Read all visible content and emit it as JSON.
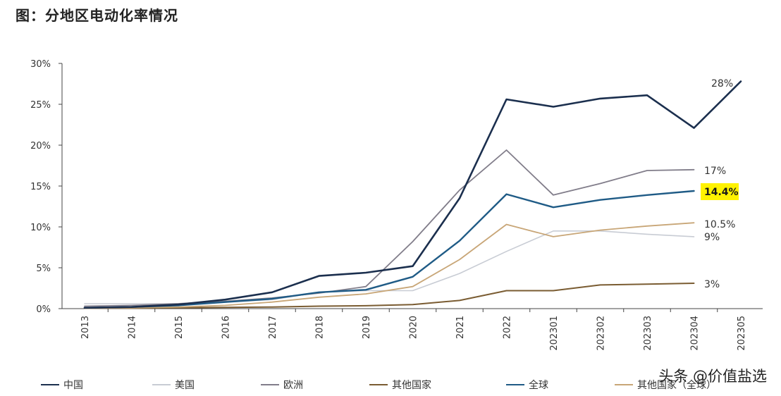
{
  "title": "图：分地区电动化率情况",
  "watermark": "头条 @价值盐选",
  "chart_data": {
    "type": "line",
    "categories": [
      "2013",
      "2014",
      "2015",
      "2016",
      "2017",
      "2018",
      "2019",
      "2020",
      "2021",
      "2022",
      "202301",
      "202302",
      "202303",
      "202304",
      "202305"
    ],
    "ylim": [
      0,
      30
    ],
    "yticks": [
      "0%",
      "5%",
      "10%",
      "15%",
      "20%",
      "25%",
      "30%"
    ],
    "series": [
      {
        "name": "中国",
        "color": "#1b2f4e",
        "width": 2.6,
        "values": [
          0.1,
          0.2,
          0.5,
          1.1,
          2.0,
          4.0,
          4.4,
          5.2,
          13.5,
          25.6,
          24.7,
          25.7,
          26.1,
          22.1,
          27.8
        ],
        "end_label": "28%"
      },
      {
        "name": "美国",
        "color": "#c8ccd4",
        "width": 1.6,
        "values": [
          0.6,
          0.6,
          0.6,
          0.8,
          1.1,
          2.0,
          2.2,
          2.2,
          4.3,
          7.0,
          9.5,
          9.5,
          9.1,
          8.8,
          null
        ],
        "end_label": "9%"
      },
      {
        "name": "欧洲",
        "color": "#817d8a",
        "width": 1.8,
        "values": [
          0.3,
          0.4,
          0.6,
          0.9,
          1.3,
          1.9,
          2.7,
          8.2,
          14.5,
          19.4,
          13.9,
          15.3,
          16.9,
          17.0,
          null
        ],
        "end_label": "17%"
      },
      {
        "name": "其他国家",
        "color": "#7a5c32",
        "width": 2.0,
        "values": [
          0.05,
          0.05,
          0.1,
          0.15,
          0.2,
          0.3,
          0.35,
          0.5,
          1.0,
          2.2,
          2.2,
          2.9,
          3.0,
          3.1,
          null
        ],
        "end_label": "3%"
      },
      {
        "name": "全球",
        "color": "#1f5b86",
        "width": 2.4,
        "values": [
          0.1,
          0.2,
          0.4,
          0.8,
          1.2,
          2.0,
          2.3,
          3.9,
          8.3,
          14.0,
          12.4,
          13.3,
          13.9,
          14.4,
          null
        ],
        "end_label": "14.4%"
      },
      {
        "name": "其他国家（全球）",
        "color": "#c8a677",
        "width": 1.8,
        "values": [
          0.05,
          0.1,
          0.2,
          0.4,
          0.8,
          1.4,
          1.8,
          2.7,
          6.0,
          10.3,
          8.8,
          9.6,
          10.1,
          10.5,
          null
        ],
        "end_label": "10.5%"
      }
    ],
    "highlight_label": "14.4%",
    "highlight_color": "#fff200"
  }
}
